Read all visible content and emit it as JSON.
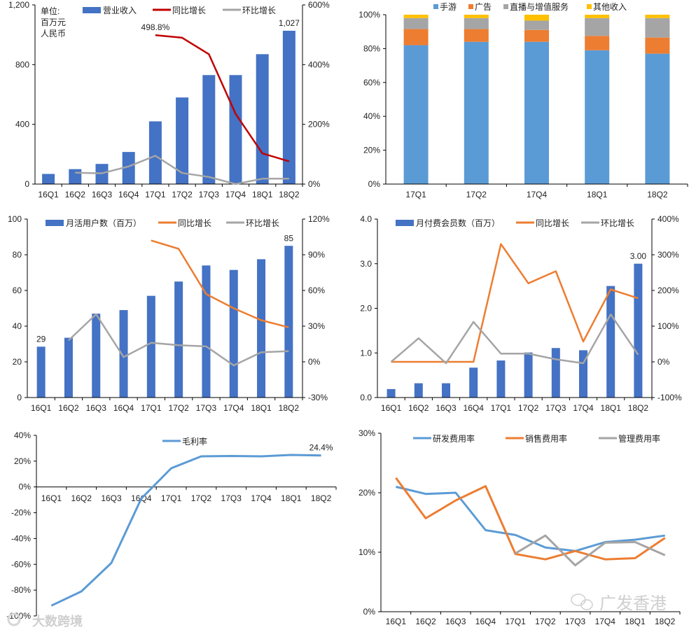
{
  "colors": {
    "blue_bar": "#4472C4",
    "dark_red": "#C00000",
    "orange": "#ED7D31",
    "gray": "#A5A5A5",
    "light_blue": "#5B9BD5",
    "yellow": "#FFC000"
  },
  "watermarks": {
    "left": "大数跨境",
    "right": "广发香港"
  },
  "chart_data": [
    {
      "type": "bar-line",
      "title": "",
      "unit_label": [
        "单位:",
        "百万元",
        "人民币"
      ],
      "categories": [
        "16Q1",
        "16Q2",
        "16Q3",
        "16Q4",
        "17Q1",
        "17Q2",
        "17Q3",
        "17Q4",
        "18Q1",
        "18Q2"
      ],
      "y_left": {
        "range": [
          0,
          1200
        ],
        "ticks": [
          0,
          400,
          800,
          1200
        ],
        "tick_labels": [
          "0",
          "400",
          "800",
          "1,200"
        ]
      },
      "y_right": {
        "range": [
          0,
          600
        ],
        "ticks": [
          0,
          200,
          400,
          600
        ],
        "tick_labels": [
          "0%",
          "200%",
          "400%",
          "600%"
        ]
      },
      "series": [
        {
          "name": "营业收入",
          "kind": "bar",
          "axis": "left",
          "color": "#4472C4",
          "values": [
            68,
            100,
            135,
            215,
            420,
            580,
            730,
            730,
            870,
            1027
          ]
        },
        {
          "name": "同比增长",
          "kind": "line",
          "axis": "right",
          "color": "#C00000",
          "values": [
            null,
            null,
            null,
            null,
            498.8,
            490,
            435,
            235,
            103,
            76
          ]
        },
        {
          "name": "环比增长",
          "kind": "line",
          "axis": "right",
          "color": "#A5A5A5",
          "values": [
            null,
            38,
            36,
            59,
            95,
            37,
            24,
            0,
            18,
            18
          ]
        }
      ],
      "annotations": [
        {
          "series": 1,
          "index": 4,
          "text": "498.8%"
        },
        {
          "series": 0,
          "index": 9,
          "text": "1,027"
        }
      ]
    },
    {
      "type": "stacked-bar-100",
      "title": "",
      "categories": [
        "17Q1",
        "17Q2",
        "17Q4",
        "18Q1",
        "18Q2"
      ],
      "y_left": {
        "range": [
          0,
          100
        ],
        "ticks": [
          0,
          20,
          40,
          60,
          80,
          100
        ],
        "tick_labels": [
          "0%",
          "20%",
          "40%",
          "60%",
          "80%",
          "100%"
        ]
      },
      "series": [
        {
          "name": "手游",
          "kind": "stack",
          "color": "#5B9BD5",
          "values": [
            82,
            84,
            84,
            79,
            77
          ]
        },
        {
          "name": "广告",
          "kind": "stack",
          "color": "#ED7D31",
          "values": [
            9.5,
            7.5,
            7,
            8.5,
            9.5
          ]
        },
        {
          "name": "直播与增值服务",
          "kind": "stack",
          "color": "#A5A5A5",
          "values": [
            6.5,
            6.5,
            5.5,
            10.5,
            11.5
          ]
        },
        {
          "name": "其他收入",
          "kind": "stack",
          "color": "#FFC000",
          "values": [
            2,
            2,
            3.5,
            2,
            2
          ]
        }
      ],
      "annotations": []
    },
    {
      "type": "bar-line",
      "title": "",
      "categories": [
        "16Q1",
        "16Q2",
        "16Q3",
        "16Q4",
        "17Q1",
        "17Q2",
        "17Q3",
        "17Q4",
        "18Q1",
        "18Q2"
      ],
      "y_left": {
        "range": [
          0,
          100
        ],
        "ticks": [
          0,
          20,
          40,
          60,
          80,
          100
        ],
        "tick_labels": [
          "0",
          "20",
          "40",
          "60",
          "80",
          "100"
        ]
      },
      "y_right": {
        "range": [
          -30,
          120
        ],
        "ticks": [
          -30,
          0,
          30,
          60,
          90,
          120
        ],
        "tick_labels": [
          "-30%",
          "0%",
          "30%",
          "60%",
          "90%",
          "120%"
        ]
      },
      "series": [
        {
          "name": "月活用户数（百万）",
          "kind": "bar",
          "axis": "left",
          "color": "#4472C4",
          "values": [
            28.5,
            33.5,
            47,
            49,
            57,
            65,
            74,
            71.5,
            77.5,
            85
          ]
        },
        {
          "name": "同比增长",
          "kind": "line",
          "axis": "right",
          "color": "#ED7D31",
          "values": [
            null,
            null,
            null,
            null,
            102,
            95,
            57,
            45,
            35,
            29
          ]
        },
        {
          "name": "环比增长",
          "kind": "line",
          "axis": "right",
          "color": "#A5A5A5",
          "values": [
            null,
            18,
            40,
            4,
            16,
            14,
            13,
            -3,
            8,
            9
          ]
        }
      ],
      "annotations": [
        {
          "series": 0,
          "index": 0,
          "text": "29"
        },
        {
          "series": 0,
          "index": 9,
          "text": "85"
        }
      ]
    },
    {
      "type": "bar-line",
      "title": "",
      "categories": [
        "16Q1",
        "16Q2",
        "16Q3",
        "16Q4",
        "17Q1",
        "17Q2",
        "17Q3",
        "17Q4",
        "18Q1",
        "18Q2"
      ],
      "y_left": {
        "range": [
          0,
          4
        ],
        "ticks": [
          0,
          1,
          2,
          3,
          4
        ],
        "tick_labels": [
          "0.0",
          "1.0",
          "2.0",
          "3.0",
          "4.0"
        ]
      },
      "y_right": {
        "range": [
          -100,
          400
        ],
        "ticks": [
          -100,
          0,
          100,
          200,
          300,
          400
        ],
        "tick_labels": [
          "-100%",
          "0%",
          "100%",
          "200%",
          "300%",
          "400%"
        ]
      },
      "series": [
        {
          "name": "月付费会员数（百万）",
          "kind": "bar",
          "axis": "left",
          "color": "#4472C4",
          "values": [
            0.19,
            0.32,
            0.32,
            0.67,
            0.83,
            1.01,
            1.11,
            1.06,
            2.5,
            3.0
          ]
        },
        {
          "name": "同比增长",
          "kind": "line",
          "axis": "right",
          "color": "#ED7D31",
          "values": [
            0,
            0,
            0,
            0,
            330,
            220,
            254,
            57,
            203,
            178
          ]
        },
        {
          "name": "环比增长",
          "kind": "line",
          "axis": "right",
          "color": "#A5A5A5",
          "values": [
            0,
            66,
            -4,
            112,
            23,
            23,
            7,
            -4,
            133,
            20
          ]
        }
      ],
      "annotations": [
        {
          "series": 0,
          "index": 9,
          "text": "3.00"
        }
      ]
    },
    {
      "type": "line",
      "title": "",
      "categories": [
        "16Q1",
        "16Q2",
        "16Q3",
        "16Q4",
        "17Q1",
        "17Q2",
        "17Q3",
        "17Q4",
        "18Q1",
        "18Q2"
      ],
      "y_left": {
        "range": [
          -100,
          40
        ],
        "ticks": [
          -100,
          -80,
          -60,
          -40,
          -20,
          0,
          20,
          40
        ],
        "tick_labels": [
          "-100%",
          "-80%",
          "-60%",
          "-40%",
          "-20%",
          "0%",
          "20%",
          "40%"
        ]
      },
      "series": [
        {
          "name": "毛利率",
          "kind": "line",
          "axis": "left",
          "color": "#5B9BD5",
          "values": [
            -92,
            -81,
            -59,
            -9,
            14.5,
            23.7,
            24,
            23.7,
            24.8,
            24.4
          ]
        }
      ],
      "annotations": [
        {
          "series": 0,
          "index": 9,
          "text": "24.4%"
        }
      ]
    },
    {
      "type": "line",
      "title": "",
      "categories": [
        "16Q1",
        "16Q2",
        "16Q3",
        "16Q4",
        "17Q1",
        "17Q2",
        "17Q3",
        "17Q4",
        "18Q1",
        "18Q2"
      ],
      "y_left": {
        "range": [
          0,
          30
        ],
        "ticks": [
          0,
          10,
          20,
          30
        ],
        "tick_labels": [
          "0%",
          "10%",
          "20%",
          "30%"
        ]
      },
      "series": [
        {
          "name": "研发费用率",
          "kind": "line",
          "axis": "left",
          "color": "#5B9BD5",
          "values": [
            21,
            19.8,
            20,
            13.7,
            12.9,
            10.8,
            10.2,
            11.7,
            12.1,
            12.8
          ]
        },
        {
          "name": "销售费用率",
          "kind": "line",
          "axis": "left",
          "color": "#ED7D31",
          "values": [
            22.5,
            15.7,
            18.7,
            21.1,
            9.7,
            8.8,
            10.2,
            8.8,
            9.0,
            12.4
          ]
        },
        {
          "name": "管理费用率",
          "kind": "line",
          "axis": "left",
          "color": "#A5A5A5",
          "values": [
            null,
            null,
            null,
            null,
            9.8,
            12.8,
            7.8,
            11.6,
            11.7,
            9.5
          ]
        }
      ],
      "annotations": []
    }
  ]
}
